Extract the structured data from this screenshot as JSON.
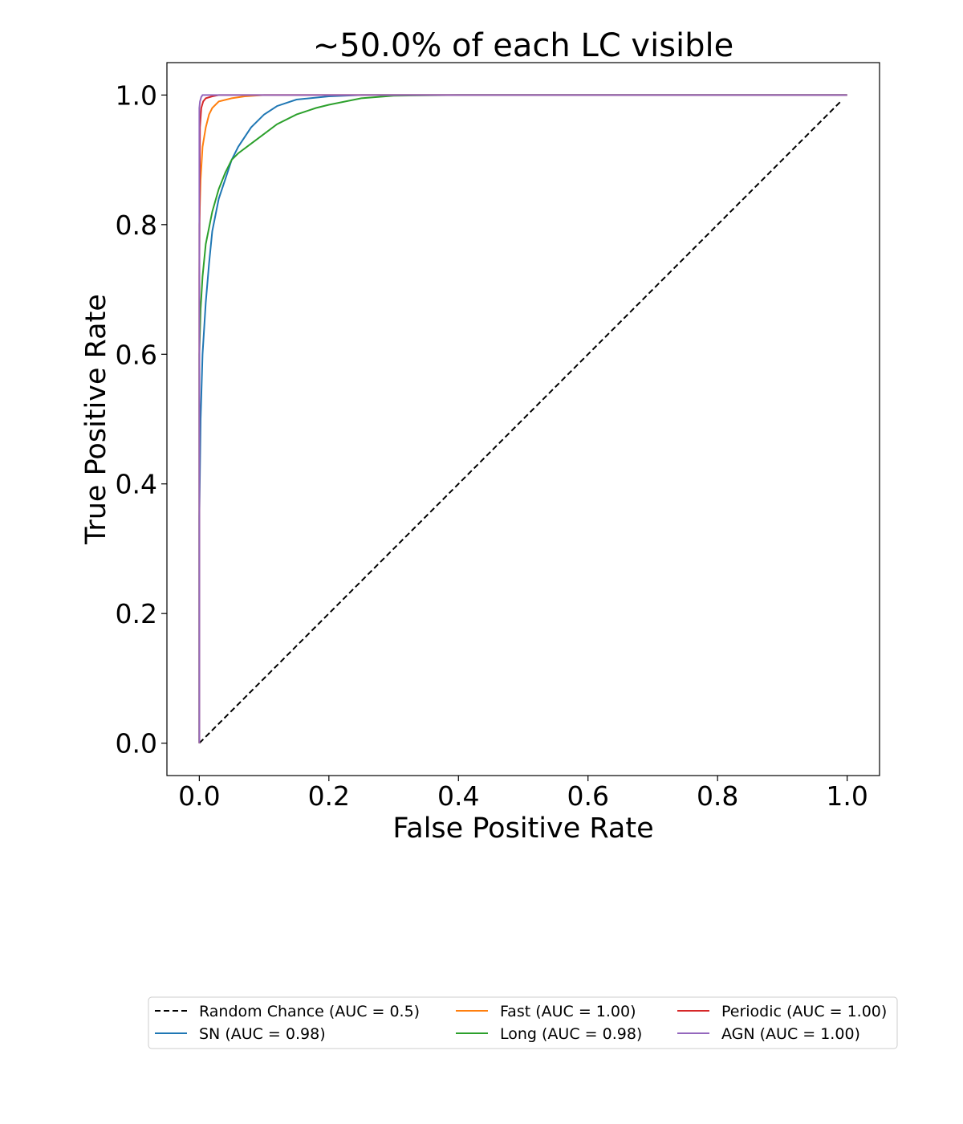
{
  "chart_data": {
    "type": "line",
    "title": "~50.0% of each LC visible",
    "xlabel": "False Positive Rate",
    "ylabel": "True Positive Rate",
    "xlim": [
      -0.05,
      1.05
    ],
    "ylim": [
      -0.05,
      1.05
    ],
    "xticks": [
      0.0,
      0.2,
      0.4,
      0.6,
      0.8,
      1.0
    ],
    "yticks": [
      0.0,
      0.2,
      0.4,
      0.6,
      0.8,
      1.0
    ],
    "xtick_labels": [
      "0.0",
      "0.2",
      "0.4",
      "0.6",
      "0.8",
      "1.0"
    ],
    "ytick_labels": [
      "0.0",
      "0.2",
      "0.4",
      "0.6",
      "0.8",
      "1.0"
    ],
    "grid": false,
    "legend_position": "bottom-center",
    "legend_columns": 3,
    "series": [
      {
        "name": "Random Chance (AUC = 0.5)",
        "color": "#000000",
        "dashed": true,
        "x": [
          0.0,
          0.99
        ],
        "y": [
          0.0,
          0.99
        ]
      },
      {
        "name": "SN (AUC = 0.98)",
        "color": "#1f77b4",
        "dashed": false,
        "x": [
          0.0,
          0.0,
          0.002,
          0.005,
          0.01,
          0.015,
          0.02,
          0.03,
          0.04,
          0.05,
          0.06,
          0.08,
          0.1,
          0.12,
          0.15,
          0.2,
          0.25,
          0.3,
          0.4,
          0.6,
          1.0
        ],
        "y": [
          0.0,
          0.35,
          0.5,
          0.6,
          0.68,
          0.74,
          0.79,
          0.84,
          0.87,
          0.9,
          0.92,
          0.95,
          0.97,
          0.983,
          0.993,
          0.998,
          1.0,
          1.0,
          1.0,
          1.0,
          1.0
        ]
      },
      {
        "name": "Fast (AUC = 1.00)",
        "color": "#ff7f0e",
        "dashed": false,
        "x": [
          0.0,
          0.0,
          0.002,
          0.005,
          0.01,
          0.015,
          0.02,
          0.03,
          0.05,
          0.07,
          0.1,
          0.2,
          1.0
        ],
        "y": [
          0.0,
          0.8,
          0.87,
          0.92,
          0.95,
          0.97,
          0.98,
          0.99,
          0.995,
          0.998,
          1.0,
          1.0,
          1.0
        ]
      },
      {
        "name": "Long (AUC = 0.98)",
        "color": "#2ca02c",
        "dashed": false,
        "x": [
          0.0,
          0.0,
          0.002,
          0.005,
          0.01,
          0.02,
          0.03,
          0.04,
          0.05,
          0.06,
          0.08,
          0.1,
          0.12,
          0.15,
          0.18,
          0.2,
          0.25,
          0.3,
          0.4,
          1.0
        ],
        "y": [
          0.0,
          0.6,
          0.67,
          0.72,
          0.77,
          0.82,
          0.855,
          0.88,
          0.9,
          0.91,
          0.925,
          0.94,
          0.955,
          0.97,
          0.98,
          0.985,
          0.995,
          0.999,
          1.0,
          1.0
        ]
      },
      {
        "name": "Periodic (AUC = 1.00)",
        "color": "#d62728",
        "dashed": false,
        "x": [
          0.0,
          0.0,
          0.001,
          0.003,
          0.006,
          0.01,
          0.02,
          0.03,
          1.0
        ],
        "y": [
          0.0,
          0.72,
          0.95,
          0.98,
          0.99,
          0.995,
          0.998,
          1.0,
          1.0
        ]
      },
      {
        "name": "AGN (AUC = 1.00)",
        "color": "#9467bd",
        "dashed": false,
        "x": [
          0.0,
          0.0,
          0.001,
          0.003,
          0.005,
          1.0
        ],
        "y": [
          0.0,
          0.98,
          0.99,
          0.997,
          1.0,
          1.0
        ]
      }
    ]
  }
}
